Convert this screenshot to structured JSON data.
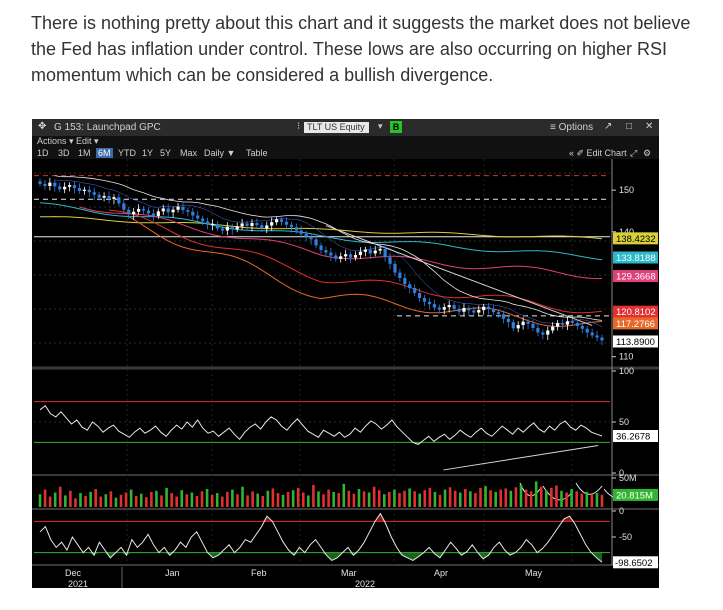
{
  "article": {
    "text": "There is nothing pretty about this chart and it suggests the market does not believe the Fed has inflation under control. These lows are also occurring on higher RSI momentum which can be considered a bullish divergence."
  },
  "terminal": {
    "launchpad_title": "G 153: Launchpad GPC",
    "ticker": "TLT US Equity",
    "green_button": "B",
    "options_label": "≡ Options",
    "expand_glyph": "↗",
    "minimize_glyph": "□",
    "close_glyph": "✕",
    "move_glyph": "✥",
    "menu_actions": "Actions ▾",
    "menu_edit": "Edit ▾",
    "periods": [
      "1D",
      "3D",
      "1M",
      "6M",
      "YTD",
      "1Y",
      "5Y",
      "Max"
    ],
    "active_period": "6M",
    "frequency": "Daily ▼",
    "table": "Table",
    "edit_chart": "« ✐ Edit Chart",
    "gear_glyph": "⚙",
    "colors": {
      "price_up": "#ffffff",
      "price_down": "#2f7fe0",
      "green": "#2fb52f",
      "red": "#e03030",
      "yellow": "#d8cf3a",
      "teal": "#2bb8c9",
      "pink": "#e0407a",
      "orange": "#e8682a"
    }
  },
  "chart_data": [
    {
      "type": "candlestick",
      "panel": "price",
      "x_range": [
        "2021-11-29",
        "2022-06-10"
      ],
      "y_ticks": [
        150,
        140,
        110
      ],
      "ylim": [
        108,
        157
      ],
      "close": [
        151.5,
        151,
        151.8,
        150.9,
        150.2,
        150.8,
        151.2,
        150.5,
        149.8,
        150.1,
        149.5,
        148.9,
        148.2,
        148.6,
        147.9,
        148.3,
        146.8,
        145.3,
        144.2,
        144.8,
        145.5,
        145.1,
        144.4,
        143.8,
        144.9,
        145.6,
        144.7,
        145.3,
        146,
        145.2,
        144.8,
        143.9,
        143.2,
        142.5,
        141.7,
        141.9,
        140.8,
        140.3,
        141.2,
        140.6,
        141.3,
        142,
        141.4,
        142.1,
        141.6,
        140.8,
        141.5,
        142.3,
        143,
        142.4,
        141.7,
        141.1,
        140.3,
        139.5,
        138.8,
        138.2,
        136.7,
        135.6,
        135,
        134.3,
        133.5,
        134.1,
        134.6,
        133.8,
        134.4,
        135.2,
        135.7,
        134.8,
        135.5,
        135.9,
        133.9,
        132.3,
        130.2,
        128.9,
        127.4,
        126.5,
        125.3,
        124.1,
        123.2,
        122.6,
        121.8,
        121.3,
        121.9,
        122.4,
        121.5,
        120.8,
        121.7,
        121.1,
        120.6,
        121.2,
        122,
        121.4,
        120.7,
        120.2,
        119.1,
        118.3,
        116.8,
        117.6,
        118.4,
        117.9,
        116.9,
        115.8,
        115.3,
        116.3,
        117.2,
        118.1,
        117.7,
        118.5,
        118.1,
        117.4,
        116.7,
        115.8,
        115.1,
        114.6,
        113.9
      ],
      "series": [
        {
          "name": "",
          "color": "#d8cf3a",
          "values": [
            143.6,
            140.4,
            138.4
          ]
        },
        {
          "name": "",
          "color": "#2bb8c9",
          "values": [
            146.5,
            138.8,
            133.8
          ]
        },
        {
          "name": "",
          "color": "#e0407a",
          "values": [
            148.5,
            134.8,
            129.4
          ]
        },
        {
          "name": "",
          "color": "#e03030",
          "values": [
            150.2,
            129,
            120.8
          ]
        },
        {
          "name": "",
          "color": "#e8682a",
          "values": [
            150.9,
            124.7,
            117.3
          ]
        }
      ],
      "levels": [
        {
          "value": 153.5,
          "style": "red-dashed"
        },
        {
          "value": 147.8,
          "style": "white-dashed"
        },
        {
          "value": 138.8,
          "style": "white-solid"
        },
        {
          "value": 119.8,
          "style": "white-dashed"
        }
      ],
      "last_value_labels": [
        {
          "text": "138.4232",
          "value": 138.4232,
          "bg": "#d8cf3a",
          "fg": "#000000"
        },
        {
          "text": "133.8188",
          "value": 133.8188,
          "bg": "#2bb8c9",
          "fg": "#ffffff"
        },
        {
          "text": "129.3668",
          "value": 129.3668,
          "bg": "#e0407a",
          "fg": "#ffffff"
        },
        {
          "text": "120.8102",
          "value": 120.8102,
          "bg": "#e03030",
          "fg": "#ffffff"
        },
        {
          "text": "117.2766",
          "value": 117.2766,
          "bg": "#e8682a",
          "fg": "#ffffff"
        },
        {
          "text": "113.8900",
          "value": 113.89,
          "bg": "#ffffff",
          "fg": "#000000"
        }
      ]
    },
    {
      "type": "line",
      "panel": "rsi",
      "y_ticks": [
        100,
        50,
        0
      ],
      "ylim": [
        0,
        100
      ],
      "levels": [
        70,
        30
      ],
      "values": [
        62,
        66,
        58,
        55,
        60,
        54,
        48,
        52,
        45,
        42,
        50,
        46,
        40,
        44,
        47,
        41,
        38,
        35,
        40,
        44,
        39,
        42,
        46,
        40,
        36,
        42,
        47,
        43,
        50,
        45,
        52,
        44,
        39,
        41,
        36,
        40,
        44,
        38,
        33,
        40,
        45,
        48,
        43,
        50,
        55,
        52,
        46,
        42,
        48,
        53,
        47,
        41,
        38,
        35,
        42,
        39,
        36,
        40,
        35,
        38,
        44,
        40,
        46,
        51,
        48,
        43,
        47,
        52,
        45,
        40,
        35,
        30,
        28,
        32,
        36,
        31,
        35,
        38,
        33,
        37,
        42,
        38,
        35,
        40,
        44,
        39,
        36,
        41,
        46,
        42,
        38,
        44,
        40,
        45,
        49,
        43,
        40,
        46,
        42,
        48,
        51,
        45,
        42,
        47,
        44,
        40,
        38,
        36.27
      ],
      "last_label": "36.2678",
      "divergence_line": [
        [
          0.52,
          0.25
        ],
        [
          0.95,
          0.37
        ]
      ]
    },
    {
      "type": "bar",
      "panel": "volume",
      "y_ticks": [
        "50M"
      ],
      "last_label": "20.815M",
      "values": [
        22,
        30,
        18,
        25,
        35,
        20,
        28,
        15,
        24,
        19,
        26,
        31,
        18,
        22,
        27,
        16,
        21,
        25,
        30,
        19,
        23,
        17,
        26,
        28,
        20,
        33,
        24,
        18,
        29,
        22,
        25,
        19,
        27,
        31,
        21,
        24,
        18,
        26,
        30,
        22,
        35,
        20,
        27,
        23,
        19,
        28,
        32,
        24,
        21,
        26,
        29,
        33,
        25,
        20,
        38,
        27,
        22,
        30,
        26,
        24,
        40,
        28,
        23,
        31,
        27,
        25,
        35,
        29,
        22,
        26,
        30,
        24,
        28,
        32,
        27,
        23,
        29,
        33,
        26,
        21,
        30,
        34,
        28,
        25,
        31,
        27,
        24,
        33,
        36,
        29,
        26,
        30,
        32,
        28,
        34,
        38,
        30,
        27,
        44,
        35,
        29,
        33,
        37,
        28,
        25,
        31,
        27,
        23,
        26,
        22,
        24,
        21
      ],
      "ylim": [
        0,
        50
      ]
    },
    {
      "type": "area",
      "panel": "oscillator",
      "y_ticks": [
        0,
        -50
      ],
      "ylim": [
        -100,
        0
      ],
      "last_label": "-98.6502",
      "values": [
        -40,
        -30,
        -55,
        -70,
        -60,
        -75,
        -50,
        -65,
        -80,
        -70,
        -85,
        -60,
        -75,
        -90,
        -80,
        -70,
        -85,
        -55,
        -70,
        -60,
        -45,
        -65,
        -80,
        -70,
        -85,
        -75,
        -60,
        -70,
        -50,
        -40,
        -60,
        -80,
        -90,
        -85,
        -75,
        -65,
        -80,
        -70,
        -55,
        -60,
        -45,
        -30,
        -10,
        -20,
        -40,
        -60,
        -75,
        -85,
        -70,
        -80,
        -65,
        -55,
        -70,
        -85,
        -95,
        -90,
        -80,
        -70,
        -85,
        -75,
        -60,
        -40,
        -20,
        -5,
        -25,
        -50,
        -70,
        -85,
        -90,
        -95,
        -88,
        -80,
        -70,
        -82,
        -90,
        -75,
        -60,
        -72,
        -85,
        -78,
        -65,
        -80,
        -92,
        -85,
        -70,
        -60,
        -75,
        -85,
        -80,
        -70,
        -55,
        -65,
        -80,
        -72,
        -60,
        -45,
        -30,
        -15,
        -10,
        -25,
        -45,
        -65,
        -80,
        -90,
        -98.65
      ]
    }
  ],
  "x_axis": {
    "labels": [
      "Dec",
      "Jan",
      "Feb",
      "Mar",
      "Apr",
      "May"
    ],
    "years": [
      "2021",
      "2022"
    ]
  }
}
